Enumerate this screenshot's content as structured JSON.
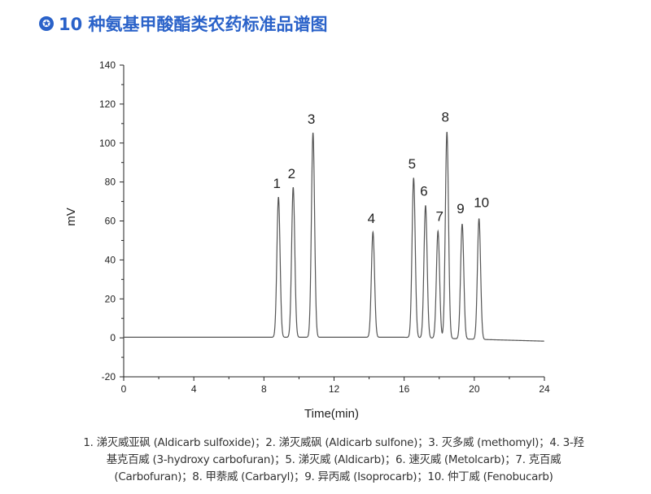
{
  "header": {
    "icon": "star-badge-icon",
    "title": "10 种氨基甲酸酯类农药标准品谱图"
  },
  "chart_data": {
    "type": "line",
    "xlabel": "Time(min)",
    "ylabel": "mV",
    "xlim": [
      0,
      24
    ],
    "ylim": [
      -20,
      140
    ],
    "xticks": [
      0,
      4,
      8,
      12,
      16,
      20,
      24
    ],
    "yticks": [
      -20,
      0,
      20,
      40,
      60,
      80,
      100,
      120,
      140
    ],
    "grid": false,
    "line_color": "#555555",
    "baseline": {
      "start_mV": 0.3,
      "end_mV": -1.7
    },
    "peaks": [
      {
        "label": "1",
        "time": 8.83,
        "height": 72
      },
      {
        "label": "2",
        "time": 9.67,
        "height": 77
      },
      {
        "label": "3",
        "time": 10.8,
        "height": 105
      },
      {
        "label": "4",
        "time": 14.22,
        "height": 54
      },
      {
        "label": "5",
        "time": 16.54,
        "height": 82
      },
      {
        "label": "6",
        "time": 17.22,
        "height": 68
      },
      {
        "label": "7",
        "time": 17.93,
        "height": 55
      },
      {
        "label": "8",
        "time": 18.44,
        "height": 106
      },
      {
        "label": "9",
        "time": 19.31,
        "height": 59
      },
      {
        "label": "10",
        "time": 20.27,
        "height": 62
      }
    ]
  },
  "caption": "1. 涕灭威亚砜 (Aldicarb sulfoxide)；2. 涕灭威砜 (Aldicarb sulfone)；3. 灭多威 (methomyl)；4. 3-羟基克百威 (3-hydroxy carbofuran)；5. 涕灭威 (Aldicarb)；6. 速灭威 (Metolcarb)；7. 克百威 (Carbofuran)；8. 甲萘威 (Carbaryl)；9. 异丙威 (Isoprocarb)；10. 仲丁威 (Fenobucarb)"
}
